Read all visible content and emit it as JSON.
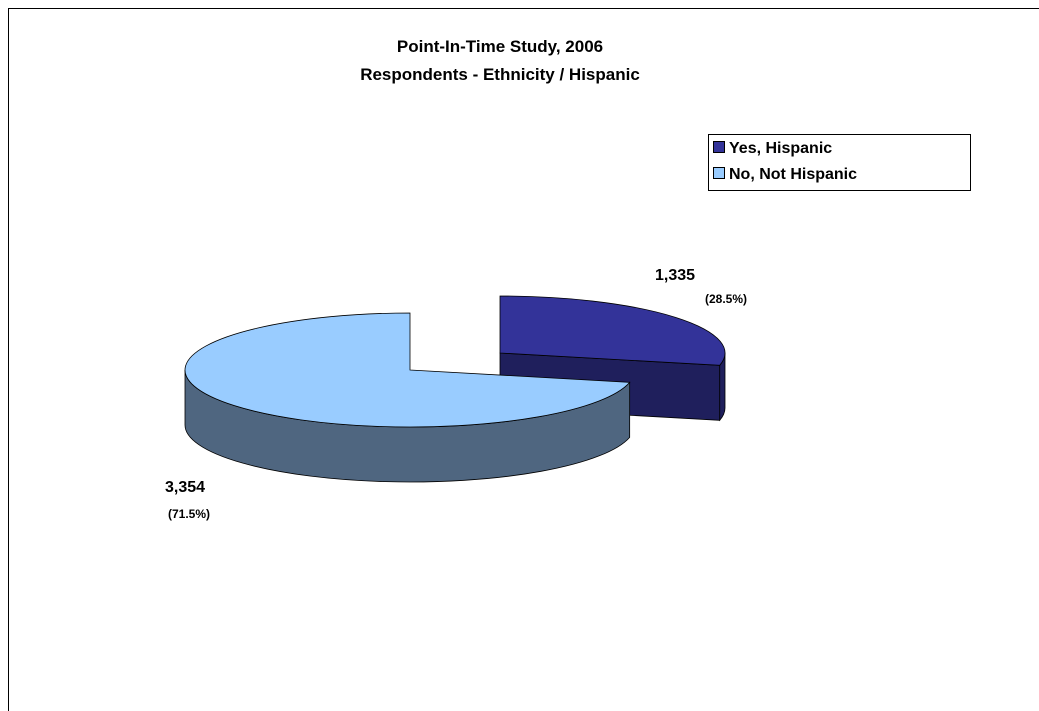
{
  "chart_data": {
    "type": "pie3d",
    "title": "Point-In-Time Study, 2006",
    "subtitle": "Respondents - Ethnicity / Hispanic",
    "categories": [
      "Yes, Hispanic",
      "No, Not Hispanic"
    ],
    "values": [
      1335,
      3354
    ],
    "value_labels": [
      "1,335",
      "3,354"
    ],
    "percents": [
      28.5,
      71.5
    ],
    "percent_labels": [
      "(28.5%)",
      "(71.5%)"
    ],
    "colors": [
      "#333399",
      "#99ccff"
    ],
    "side_colors": [
      "#1f1f5c",
      "#4f6680"
    ],
    "legend": "upper right"
  }
}
